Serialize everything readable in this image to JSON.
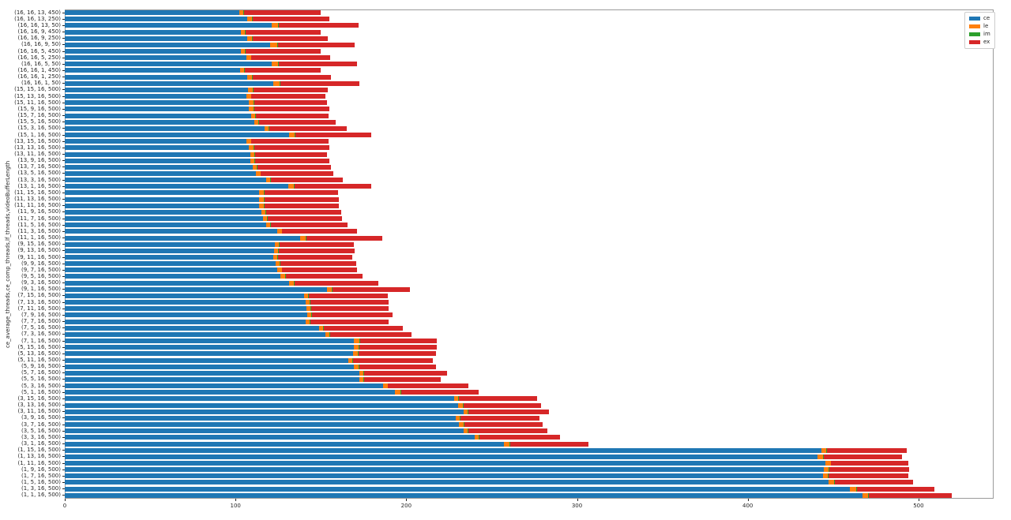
{
  "figure": {
    "background": "#ffffff"
  },
  "legend": {
    "position": "upper-right",
    "entries": [
      {
        "label": "ce",
        "color": "#1f77b4"
      },
      {
        "label": "le",
        "color": "#ff7f0e"
      },
      {
        "label": "im",
        "color": "#2ca02c"
      },
      {
        "label": "ex",
        "color": "#d62728"
      }
    ]
  },
  "chart_data": {
    "type": "bar",
    "orientation": "horizontal",
    "stacked": true,
    "title": "",
    "xlabel": "",
    "ylabel": "ce_average_threads,ce_comp_threads,lf_threads,videoBufferLength",
    "xlim": [
      0,
      544
    ],
    "x_ticks": [
      0,
      100,
      200,
      300,
      400,
      500
    ],
    "grid": false,
    "legend_position": "upper right",
    "series_colors": {
      "ce": "#1f77b4",
      "le": "#ff7f0e",
      "im": "#2ca02c",
      "ex": "#d62728"
    },
    "categories": [
      "(16, 16, 13, 450)",
      "(16, 16, 13, 250)",
      "(16, 16, 13, 50)",
      "(16, 16, 9, 450)",
      "(16, 16, 9, 250)",
      "(16, 16, 9, 50)",
      "(16, 16, 5, 450)",
      "(16, 16, 5, 250)",
      "(16, 16, 5, 50)",
      "(16, 16, 1, 450)",
      "(16, 16, 1, 250)",
      "(16, 16, 1, 50)",
      "(15, 15, 16, 500)",
      "(15, 13, 16, 500)",
      "(15, 11, 16, 500)",
      "(15, 9, 16, 500)",
      "(15, 7, 16, 500)",
      "(15, 5, 16, 500)",
      "(15, 3, 16, 500)",
      "(15, 1, 16, 500)",
      "(13, 15, 16, 500)",
      "(13, 13, 16, 500)",
      "(13, 11, 16, 500)",
      "(13, 9, 16, 500)",
      "(13, 7, 16, 500)",
      "(13, 5, 16, 500)",
      "(13, 3, 16, 500)",
      "(13, 1, 16, 500)",
      "(11, 15, 16, 500)",
      "(11, 13, 16, 500)",
      "(11, 11, 16, 500)",
      "(11, 9, 16, 500)",
      "(11, 7, 16, 500)",
      "(11, 5, 16, 500)",
      "(11, 3, 16, 500)",
      "(11, 1, 16, 500)",
      "(9, 15, 16, 500)",
      "(9, 13, 16, 500)",
      "(9, 11, 16, 500)",
      "(9, 9, 16, 500)",
      "(9, 7, 16, 500)",
      "(9, 5, 16, 500)",
      "(9, 3, 16, 500)",
      "(9, 1, 16, 500)",
      "(7, 15, 16, 500)",
      "(7, 13, 16, 500)",
      "(7, 11, 16, 500)",
      "(7, 9, 16, 500)",
      "(7, 7, 16, 500)",
      "(7, 5, 16, 500)",
      "(7, 3, 16, 500)",
      "(7, 1, 16, 500)",
      "(5, 15, 16, 500)",
      "(5, 13, 16, 500)",
      "(5, 11, 16, 500)",
      "(5, 9, 16, 500)",
      "(5, 7, 16, 500)",
      "(5, 5, 16, 500)",
      "(5, 3, 16, 500)",
      "(5, 1, 16, 500)",
      "(3, 15, 16, 500)",
      "(3, 13, 16, 500)",
      "(3, 11, 16, 500)",
      "(3, 9, 16, 500)",
      "(3, 7, 16, 500)",
      "(3, 5, 16, 500)",
      "(3, 3, 16, 500)",
      "(3, 1, 16, 500)",
      "(1, 15, 16, 500)",
      "(1, 13, 16, 500)",
      "(1, 11, 16, 500)",
      "(1, 9, 16, 500)",
      "(1, 7, 16, 500)",
      "(1, 5, 16, 500)",
      "(1, 3, 16, 500)",
      "(1, 1, 16, 500)"
    ],
    "series": [
      {
        "name": "ce",
        "values": [
          102,
          107,
          121,
          103,
          107,
          120.5,
          103,
          106.5,
          121,
          102.5,
          107,
          122,
          107.5,
          106.5,
          108,
          108,
          109,
          111,
          117,
          131.5,
          106.5,
          108,
          108.5,
          108.5,
          110,
          112,
          118,
          131,
          114,
          114,
          114,
          115,
          116,
          118,
          124.5,
          138,
          123,
          122.5,
          122,
          123.5,
          124.5,
          126.5,
          131.5,
          153.5,
          140,
          141,
          141.5,
          142,
          141,
          149,
          152.5,
          169.5,
          169.5,
          169,
          166,
          169.5,
          172.5,
          172.5,
          186.5,
          193.5,
          228,
          230.5,
          233.5,
          229,
          231,
          233.5,
          240,
          257,
          443,
          441,
          445.5,
          444.5,
          444,
          447.5,
          460,
          467
        ]
      },
      {
        "name": "le",
        "values": [
          2.5,
          2.5,
          4,
          2.5,
          2.5,
          4,
          2.5,
          2.5,
          4,
          2.5,
          2.5,
          4,
          2.5,
          2.5,
          2.5,
          2.5,
          2.5,
          2.5,
          2.5,
          3,
          2.5,
          2.5,
          2.5,
          2.5,
          2.5,
          2.5,
          2.5,
          3,
          2.5,
          2.5,
          2.5,
          2.5,
          2.5,
          2.5,
          2.5,
          3,
          2.5,
          2.5,
          2.5,
          2.5,
          2.5,
          2.5,
          2.5,
          3,
          2.5,
          2.5,
          2.5,
          2.5,
          2.5,
          2.5,
          2.5,
          3,
          2.5,
          2.5,
          2.5,
          2.5,
          2.5,
          2.5,
          2.5,
          3,
          2.5,
          2.5,
          2.5,
          2.5,
          2.5,
          2.5,
          2.5,
          3.5,
          3,
          3,
          3,
          3,
          3,
          3,
          3.5,
          3.5
        ]
      },
      {
        "name": "im",
        "values": [
          0.4,
          0.4,
          0.4,
          0.4,
          0.4,
          0.4,
          0.4,
          0.4,
          0.4,
          0.4,
          0.4,
          0.4,
          0.4,
          0.4,
          0.4,
          0.4,
          0.4,
          0.4,
          0.4,
          0.4,
          0.4,
          0.4,
          0.4,
          0.4,
          0.4,
          0.4,
          0.4,
          0.4,
          0.4,
          0.4,
          0.4,
          0.4,
          0.4,
          0.4,
          0.4,
          0.4,
          0.4,
          0.4,
          0.4,
          0.4,
          0.4,
          0.4,
          0.4,
          0.4,
          0.4,
          0.4,
          0.4,
          0.4,
          0.4,
          0.4,
          0.4,
          0.4,
          0.4,
          0.4,
          0.4,
          0.4,
          0.4,
          0.4,
          0.4,
          0.4,
          0.4,
          0.4,
          0.4,
          0.4,
          0.4,
          0.4,
          0.4,
          0.4,
          0.4,
          0.4,
          0.4,
          0.4,
          0.4,
          0.4,
          0.4,
          0.4
        ]
      },
      {
        "name": "ex",
        "values": [
          45.1,
          45.1,
          46.6,
          44.1,
          44.1,
          45.1,
          44.1,
          46.1,
          45.6,
          44.6,
          46.1,
          46.1,
          43.6,
          43.1,
          42.6,
          44.1,
          42.6,
          44.6,
          45.1,
          44.6,
          45.1,
          44.1,
          42.1,
          43.6,
          43.1,
          42.6,
          42.1,
          45.1,
          43.1,
          43.6,
          43.6,
          44.1,
          43.6,
          44.6,
          43.6,
          44.6,
          43.6,
          44.6,
          43.6,
          44.1,
          43.6,
          45.1,
          49.1,
          45.1,
          46.1,
          45.6,
          45.1,
          47.1,
          45.6,
          46.1,
          47.6,
          45.1,
          45.6,
          45.6,
          46.6,
          45.1,
          48.6,
          44.6,
          47.1,
          45.6,
          45.6,
          45.6,
          47.1,
          46.1,
          46.1,
          46.1,
          47.1,
          45.6,
          46.6,
          46.1,
          45.1,
          46.6,
          46.6,
          46.1,
          45.6,
          48.6
        ]
      }
    ]
  }
}
